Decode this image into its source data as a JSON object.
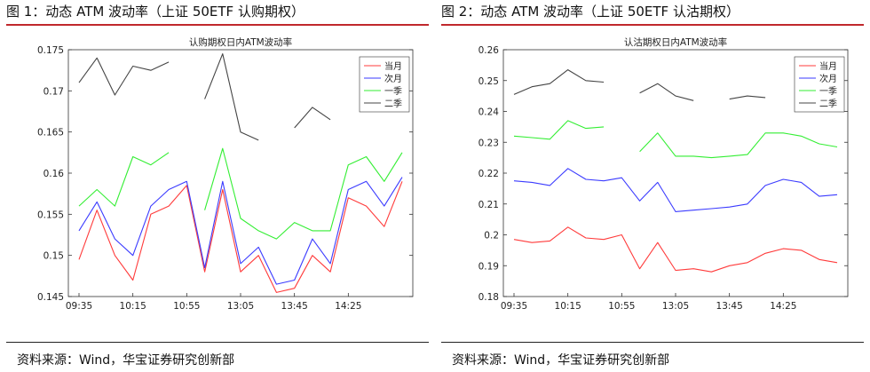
{
  "figures": [
    {
      "figure_title": "图 1：动态 ATM 波动率（上证 50ETF 认购期权）",
      "source_note": "资料来源：Wind，华宝证券研究创新部"
    },
    {
      "figure_title": "图 2：动态 ATM 波动率（上证 50ETF 认沽期权）",
      "source_note": "资料来源：Wind，华宝证券研究创新部"
    }
  ],
  "colors": {
    "当月": "#ff3b3b",
    "次月": "#3b3bff",
    "一季": "#33ee33",
    "二季": "#444444",
    "rule": "#c0282d"
  },
  "chart_data": [
    {
      "type": "line",
      "title": "认购期权日内ATM波动率",
      "xlabel": "",
      "ylabel": "",
      "x": [
        "09:35",
        "",
        "",
        "10:15",
        "",
        "",
        "10:55",
        "",
        "",
        "13:05",
        "",
        "",
        "13:45",
        "",
        "",
        "14:25",
        "",
        "",
        ""
      ],
      "x_ticks": [
        "09:35",
        "10:15",
        "10:55",
        "13:05",
        "13:45",
        "14:25"
      ],
      "ylim": [
        0.145,
        0.175
      ],
      "y_ticks": [
        "0.145",
        "0.15",
        "0.155",
        "0.16",
        "0.165",
        "0.17",
        "0.175"
      ],
      "grid": false,
      "legend_position": "top-right",
      "series": [
        {
          "name": "当月",
          "values": [
            0.1495,
            0.1555,
            0.15,
            0.147,
            0.155,
            0.156,
            0.1585,
            0.148,
            0.158,
            0.148,
            0.15,
            0.1455,
            0.146,
            0.15,
            0.148,
            0.157,
            0.156,
            0.1535,
            0.159
          ]
        },
        {
          "name": "次月",
          "values": [
            0.153,
            0.1565,
            0.152,
            0.15,
            0.156,
            0.158,
            0.159,
            0.1485,
            0.159,
            0.149,
            0.151,
            0.1465,
            0.147,
            0.152,
            0.149,
            0.158,
            0.159,
            0.156,
            0.1595
          ]
        },
        {
          "name": "一季",
          "values": [
            0.156,
            0.158,
            0.156,
            0.162,
            0.161,
            0.1625,
            null,
            0.1555,
            0.163,
            0.1545,
            0.153,
            0.152,
            0.154,
            0.153,
            0.153,
            0.161,
            0.162,
            0.159,
            0.1625
          ]
        },
        {
          "name": "二季",
          "values": [
            0.171,
            0.174,
            0.1695,
            0.173,
            0.1725,
            0.1735,
            null,
            0.169,
            0.1745,
            0.165,
            0.164,
            null,
            0.1655,
            0.168,
            0.1665,
            null,
            null,
            null,
            null
          ]
        }
      ]
    },
    {
      "type": "line",
      "title": "认沽期权日内ATM波动率",
      "xlabel": "",
      "ylabel": "",
      "x": [
        "09:35",
        "",
        "",
        "10:15",
        "",
        "",
        "10:55",
        "",
        "",
        "13:05",
        "",
        "",
        "13:45",
        "",
        "",
        "14:25",
        "",
        "",
        ""
      ],
      "x_ticks": [
        "09:35",
        "10:15",
        "10:55",
        "13:05",
        "13:45",
        "14:25"
      ],
      "ylim": [
        0.18,
        0.26
      ],
      "y_ticks": [
        "0.18",
        "0.19",
        "0.2",
        "0.21",
        "0.22",
        "0.23",
        "0.24",
        "0.25",
        "0.26"
      ],
      "grid": false,
      "legend_position": "top-right",
      "series": [
        {
          "name": "当月",
          "values": [
            0.1985,
            0.1975,
            0.198,
            0.2025,
            0.199,
            0.1985,
            0.2,
            0.189,
            0.1975,
            0.1885,
            0.189,
            0.188,
            0.19,
            0.191,
            0.194,
            0.1955,
            0.195,
            0.192,
            0.191
          ]
        },
        {
          "name": "次月",
          "values": [
            0.2175,
            0.217,
            0.216,
            0.2215,
            0.218,
            0.2175,
            0.2185,
            0.211,
            0.217,
            0.2075,
            0.208,
            0.2085,
            0.209,
            0.21,
            0.216,
            0.218,
            0.217,
            0.2125,
            0.213
          ]
        },
        {
          "name": "一季",
          "values": [
            0.232,
            0.2315,
            0.231,
            0.237,
            0.2345,
            0.235,
            null,
            0.227,
            0.233,
            0.2255,
            0.2255,
            0.225,
            0.2255,
            0.226,
            0.233,
            0.233,
            0.232,
            0.2295,
            0.2285
          ]
        },
        {
          "name": "二季",
          "values": [
            0.2455,
            0.248,
            0.249,
            0.2535,
            0.25,
            0.2495,
            null,
            0.246,
            0.249,
            0.245,
            0.2435,
            null,
            0.244,
            0.245,
            0.2445,
            null,
            null,
            null,
            null
          ]
        }
      ]
    }
  ]
}
